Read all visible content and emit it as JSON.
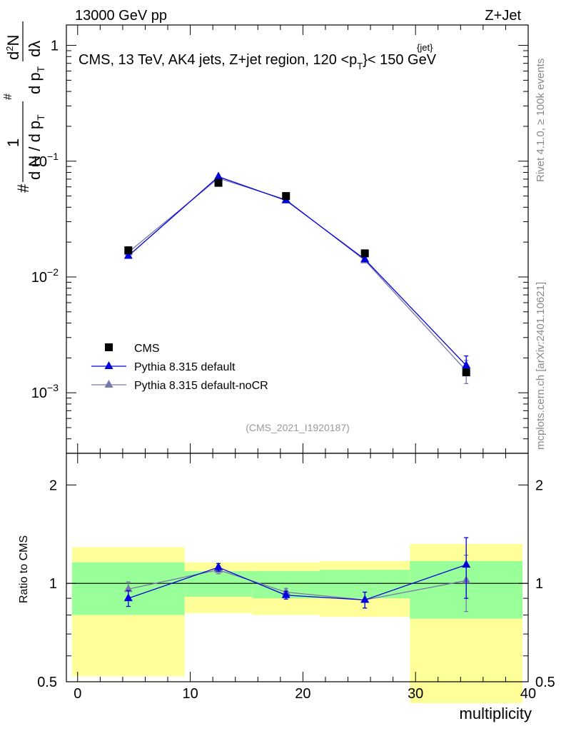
{
  "header": {
    "energy_label": "13000 GeV pp",
    "process_label": "Z+Jet",
    "plot_title": "CMS, 13 TeV, AK4 jets, Z+jet region, 120 <p",
    "plot_title_sup": "{jet}",
    "plot_title_sub": "T",
    "plot_title_end": "}< 150 GeV",
    "watermark": "(CMS_2021_I1920187)",
    "side_note_top": "Rivet 4.1.0, ≥ 100k events",
    "side_note_bottom": "mcplots.cern.ch [arXiv:2401.10621]"
  },
  "chart_data": [
    {
      "type": "line",
      "scale": "log",
      "ylabel_parts": [
        "#",
        "1",
        "d N / d p",
        "T",
        "#",
        "d p",
        "T",
        "d",
        "2",
        "N",
        "dλ"
      ],
      "xlim": [
        -1,
        40
      ],
      "ylim": [
        0.0003,
        1.5
      ],
      "yticks": [
        {
          "value": 1,
          "base": "1",
          "exp": ""
        },
        {
          "value": 0.1,
          "base": "10",
          "exp": "−1"
        },
        {
          "value": 0.01,
          "base": "10",
          "exp": "−2"
        },
        {
          "value": 0.001,
          "base": "10",
          "exp": "−3"
        }
      ],
      "series": [
        {
          "name": "CMS",
          "color": "#000000",
          "marker": "square",
          "x": [
            4.5,
            12.5,
            18.5,
            25.5,
            34.5
          ],
          "values": [
            0.017,
            0.065,
            0.05,
            0.016,
            0.0015
          ],
          "err_up": [
            0,
            0,
            0,
            0,
            0
          ],
          "err_down": [
            0,
            0,
            0,
            0,
            0
          ]
        },
        {
          "name": "Pythia 8.315 default",
          "color": "#0000dd",
          "marker": "triangle",
          "x": [
            4.5,
            12.5,
            18.5,
            25.5,
            34.5
          ],
          "values": [
            0.0152,
            0.0735,
            0.0458,
            0.0142,
            0.00172
          ],
          "err_up": [
            0,
            0,
            0,
            0,
            0.00036
          ],
          "err_down": [
            0,
            0,
            0,
            0,
            0.0003
          ]
        },
        {
          "name": "Pythia 8.315 default-noCR",
          "color": "#7777aa",
          "marker": "triangle",
          "x": [
            4.5,
            12.5,
            18.5,
            25.5,
            34.5
          ],
          "values": [
            0.0163,
            0.0713,
            0.0465,
            0.0139,
            0.00155
          ],
          "err_up": [
            0,
            0,
            0,
            0,
            0.00035
          ],
          "err_down": [
            0,
            0,
            0,
            0,
            0.00035
          ]
        }
      ]
    },
    {
      "type": "line",
      "ylabel": "Ratio to CMS",
      "xlabel": "multiplicity",
      "xlim": [
        -1,
        40
      ],
      "ylim": [
        0.5,
        2.5
      ],
      "xticks": [
        0,
        10,
        20,
        30,
        40
      ],
      "yticks": [
        0.5,
        1,
        2
      ],
      "reference_line": 1,
      "bands": [
        {
          "x0": -0.5,
          "x1": 9.5,
          "inner": [
            0.8,
            1.16
          ],
          "outer": [
            0.52,
            1.29
          ]
        },
        {
          "x0": 9.5,
          "x1": 15.5,
          "inner": [
            0.91,
            1.09
          ],
          "outer": [
            0.81,
            1.16
          ]
        },
        {
          "x0": 15.5,
          "x1": 21.5,
          "inner": [
            0.9,
            1.09
          ],
          "outer": [
            0.8,
            1.16
          ]
        },
        {
          "x0": 21.5,
          "x1": 29.5,
          "inner": [
            0.9,
            1.1
          ],
          "outer": [
            0.79,
            1.17
          ]
        },
        {
          "x0": 29.5,
          "x1": 39.5,
          "inner": [
            0.78,
            1.17
          ],
          "outer": [
            0.43,
            1.32
          ]
        }
      ],
      "series": [
        {
          "name": "Pythia 8.315 default",
          "color": "#0000dd",
          "x": [
            4.5,
            12.5,
            18.5,
            25.5,
            34.5
          ],
          "values": [
            0.9,
            1.12,
            0.92,
            0.89,
            1.14
          ],
          "err_up": [
            0.05,
            0.03,
            0.025,
            0.05,
            0.24
          ],
          "err_down": [
            0.05,
            0.03,
            0.025,
            0.05,
            0.24
          ]
        },
        {
          "name": "Pythia 8.315 default-noCR",
          "color": "#7777aa",
          "x": [
            4.5,
            12.5,
            18.5,
            25.5,
            34.5
          ],
          "values": [
            0.96,
            1.1,
            0.94,
            0.89,
            1.02
          ],
          "err_up": [
            0.05,
            0.03,
            0.025,
            0.05,
            0.2
          ],
          "err_down": [
            0.05,
            0.03,
            0.025,
            0.05,
            0.2
          ]
        }
      ]
    }
  ]
}
